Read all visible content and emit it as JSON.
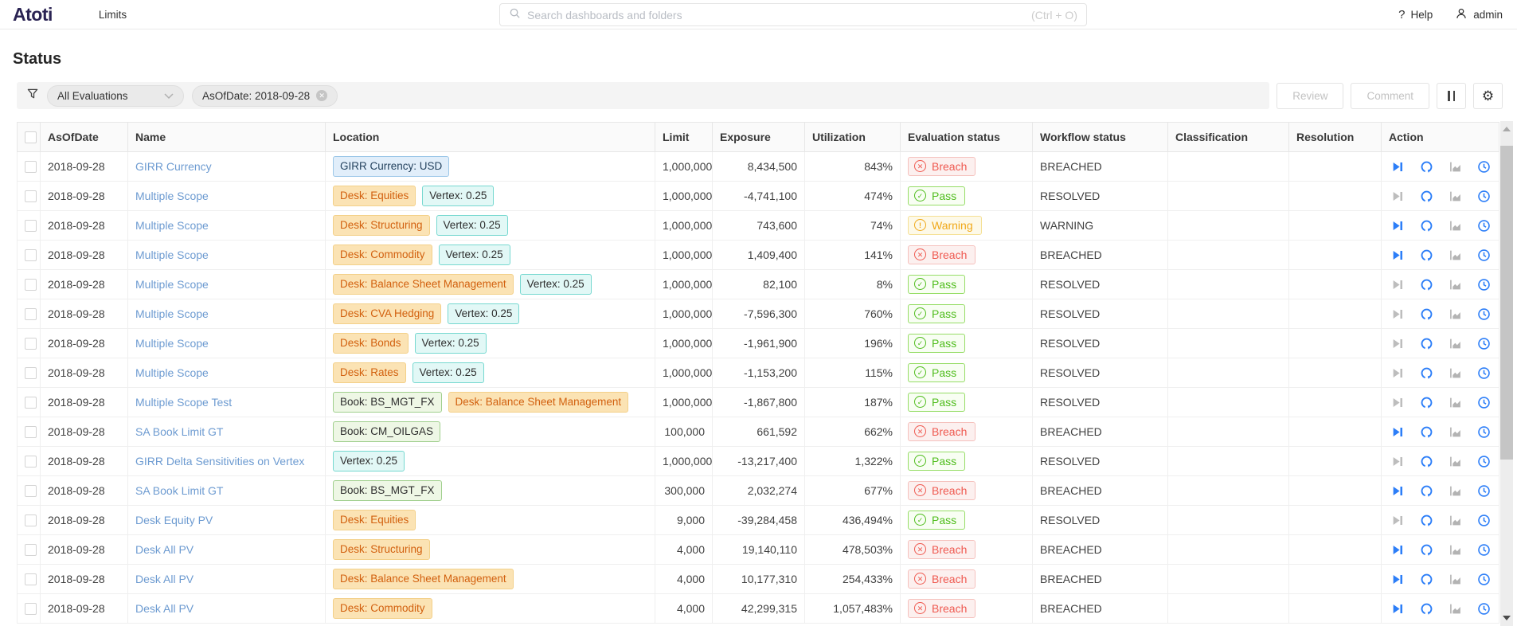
{
  "topbar": {
    "logo": "Atoti",
    "nav": [
      {
        "label": "Limits"
      }
    ],
    "search": {
      "placeholder": "Search dashboards and folders",
      "shortcut": "(Ctrl + O)"
    },
    "help_label": "Help",
    "user_label": "admin"
  },
  "page": {
    "title": "Status"
  },
  "filterbar": {
    "evaluations_dropdown": "All Evaluations",
    "chips": [
      {
        "label": "AsOfDate: 2018-09-28"
      }
    ],
    "review_label": "Review",
    "comment_label": "Comment"
  },
  "colors": {
    "accent_blue": "#2c7ef8",
    "breach_red": "#ef5950",
    "pass_green": "#4fbd1c",
    "warning_orange": "#f0a818",
    "logo_purple": "#2a2353",
    "link_blue": "#6d9bd1"
  },
  "table": {
    "columns": [
      "AsOfDate",
      "Name",
      "Location",
      "Limit",
      "Exposure",
      "Utilization",
      "Evaluation status",
      "Workflow status",
      "Classification",
      "Resolution",
      "Action"
    ],
    "action_icons": [
      "fast-forward-icon",
      "refresh-icon",
      "area-chart-icon",
      "clock-icon"
    ],
    "status_icons": {
      "breach": "x-circle-icon",
      "pass": "check-circle-icon",
      "warning": "exclamation-circle-icon"
    },
    "rows": [
      {
        "as_of_date": "2018-09-28",
        "name": "GIRR Currency",
        "location": [
          {
            "type": "blue",
            "label": "GIRR Currency: USD"
          }
        ],
        "limit": "1,000,000",
        "exposure": "8,434,500",
        "utilization": "843%",
        "evaluation": {
          "kind": "breach",
          "label": "Breach"
        },
        "workflow": "BREACHED",
        "classification": "",
        "resolution": "",
        "skip_enabled": true
      },
      {
        "as_of_date": "2018-09-28",
        "name": "Multiple Scope",
        "location": [
          {
            "type": "orange",
            "label": "Desk: Equities"
          },
          {
            "type": "cyan",
            "label": "Vertex: 0.25"
          }
        ],
        "limit": "1,000,000",
        "exposure": "-4,741,100",
        "utilization": "474%",
        "evaluation": {
          "kind": "pass",
          "label": "Pass"
        },
        "workflow": "RESOLVED",
        "classification": "",
        "resolution": "",
        "skip_enabled": false
      },
      {
        "as_of_date": "2018-09-28",
        "name": "Multiple Scope",
        "location": [
          {
            "type": "orange",
            "label": "Desk: Structuring"
          },
          {
            "type": "cyan",
            "label": "Vertex: 0.25"
          }
        ],
        "limit": "1,000,000",
        "exposure": "743,600",
        "utilization": "74%",
        "evaluation": {
          "kind": "warning",
          "label": "Warning"
        },
        "workflow": "WARNING",
        "classification": "",
        "resolution": "",
        "skip_enabled": true
      },
      {
        "as_of_date": "2018-09-28",
        "name": "Multiple Scope",
        "location": [
          {
            "type": "orange",
            "label": "Desk: Commodity"
          },
          {
            "type": "cyan",
            "label": "Vertex: 0.25"
          }
        ],
        "limit": "1,000,000",
        "exposure": "1,409,400",
        "utilization": "141%",
        "evaluation": {
          "kind": "breach",
          "label": "Breach"
        },
        "workflow": "BREACHED",
        "classification": "",
        "resolution": "",
        "skip_enabled": true
      },
      {
        "as_of_date": "2018-09-28",
        "name": "Multiple Scope",
        "location": [
          {
            "type": "orange",
            "label": "Desk: Balance Sheet Management"
          },
          {
            "type": "cyan",
            "label": "Vertex: 0.25"
          }
        ],
        "limit": "1,000,000",
        "exposure": "82,100",
        "utilization": "8%",
        "evaluation": {
          "kind": "pass",
          "label": "Pass"
        },
        "workflow": "RESOLVED",
        "classification": "",
        "resolution": "",
        "skip_enabled": false
      },
      {
        "as_of_date": "2018-09-28",
        "name": "Multiple Scope",
        "location": [
          {
            "type": "orange",
            "label": "Desk: CVA Hedging"
          },
          {
            "type": "cyan",
            "label": "Vertex: 0.25"
          }
        ],
        "limit": "1,000,000",
        "exposure": "-7,596,300",
        "utilization": "760%",
        "evaluation": {
          "kind": "pass",
          "label": "Pass"
        },
        "workflow": "RESOLVED",
        "classification": "",
        "resolution": "",
        "skip_enabled": false
      },
      {
        "as_of_date": "2018-09-28",
        "name": "Multiple Scope",
        "location": [
          {
            "type": "orange",
            "label": "Desk: Bonds"
          },
          {
            "type": "cyan",
            "label": "Vertex: 0.25"
          }
        ],
        "limit": "1,000,000",
        "exposure": "-1,961,900",
        "utilization": "196%",
        "evaluation": {
          "kind": "pass",
          "label": "Pass"
        },
        "workflow": "RESOLVED",
        "classification": "",
        "resolution": "",
        "skip_enabled": false
      },
      {
        "as_of_date": "2018-09-28",
        "name": "Multiple Scope",
        "location": [
          {
            "type": "orange",
            "label": "Desk: Rates"
          },
          {
            "type": "cyan",
            "label": "Vertex: 0.25"
          }
        ],
        "limit": "1,000,000",
        "exposure": "-1,153,200",
        "utilization": "115%",
        "evaluation": {
          "kind": "pass",
          "label": "Pass"
        },
        "workflow": "RESOLVED",
        "classification": "",
        "resolution": "",
        "skip_enabled": false
      },
      {
        "as_of_date": "2018-09-28",
        "name": "Multiple Scope Test",
        "location": [
          {
            "type": "green",
            "label": "Book: BS_MGT_FX"
          },
          {
            "type": "orange",
            "label": "Desk: Balance Sheet Management"
          }
        ],
        "limit": "1,000,000",
        "exposure": "-1,867,800",
        "utilization": "187%",
        "evaluation": {
          "kind": "pass",
          "label": "Pass"
        },
        "workflow": "RESOLVED",
        "classification": "",
        "resolution": "",
        "skip_enabled": false
      },
      {
        "as_of_date": "2018-09-28",
        "name": "SA Book Limit GT",
        "location": [
          {
            "type": "green",
            "label": "Book: CM_OILGAS"
          }
        ],
        "limit": "100,000",
        "exposure": "661,592",
        "utilization": "662%",
        "evaluation": {
          "kind": "breach",
          "label": "Breach"
        },
        "workflow": "BREACHED",
        "classification": "",
        "resolution": "",
        "skip_enabled": true
      },
      {
        "as_of_date": "2018-09-28",
        "name": "GIRR Delta Sensitivities on Vertex",
        "location": [
          {
            "type": "cyan",
            "label": "Vertex: 0.25"
          }
        ],
        "limit": "1,000,000",
        "exposure": "-13,217,400",
        "utilization": "1,322%",
        "evaluation": {
          "kind": "pass",
          "label": "Pass"
        },
        "workflow": "RESOLVED",
        "classification": "",
        "resolution": "",
        "skip_enabled": false
      },
      {
        "as_of_date": "2018-09-28",
        "name": "SA Book Limit GT",
        "location": [
          {
            "type": "green",
            "label": "Book: BS_MGT_FX"
          }
        ],
        "limit": "300,000",
        "exposure": "2,032,274",
        "utilization": "677%",
        "evaluation": {
          "kind": "breach",
          "label": "Breach"
        },
        "workflow": "BREACHED",
        "classification": "",
        "resolution": "",
        "skip_enabled": true
      },
      {
        "as_of_date": "2018-09-28",
        "name": "Desk Equity PV",
        "location": [
          {
            "type": "orange",
            "label": "Desk: Equities"
          }
        ],
        "limit": "9,000",
        "exposure": "-39,284,458",
        "utilization": "436,494%",
        "evaluation": {
          "kind": "pass",
          "label": "Pass"
        },
        "workflow": "RESOLVED",
        "classification": "",
        "resolution": "",
        "skip_enabled": false
      },
      {
        "as_of_date": "2018-09-28",
        "name": "Desk All PV",
        "location": [
          {
            "type": "orange",
            "label": "Desk: Structuring"
          }
        ],
        "limit": "4,000",
        "exposure": "19,140,110",
        "utilization": "478,503%",
        "evaluation": {
          "kind": "breach",
          "label": "Breach"
        },
        "workflow": "BREACHED",
        "classification": "",
        "resolution": "",
        "skip_enabled": true
      },
      {
        "as_of_date": "2018-09-28",
        "name": "Desk All PV",
        "location": [
          {
            "type": "orange",
            "label": "Desk: Balance Sheet Management"
          }
        ],
        "limit": "4,000",
        "exposure": "10,177,310",
        "utilization": "254,433%",
        "evaluation": {
          "kind": "breach",
          "label": "Breach"
        },
        "workflow": "BREACHED",
        "classification": "",
        "resolution": "",
        "skip_enabled": true
      },
      {
        "as_of_date": "2018-09-28",
        "name": "Desk All PV",
        "location": [
          {
            "type": "orange",
            "label": "Desk: Commodity"
          }
        ],
        "limit": "4,000",
        "exposure": "42,299,315",
        "utilization": "1,057,483%",
        "evaluation": {
          "kind": "breach",
          "label": "Breach"
        },
        "workflow": "BREACHED",
        "classification": "",
        "resolution": "",
        "skip_enabled": true
      }
    ]
  }
}
